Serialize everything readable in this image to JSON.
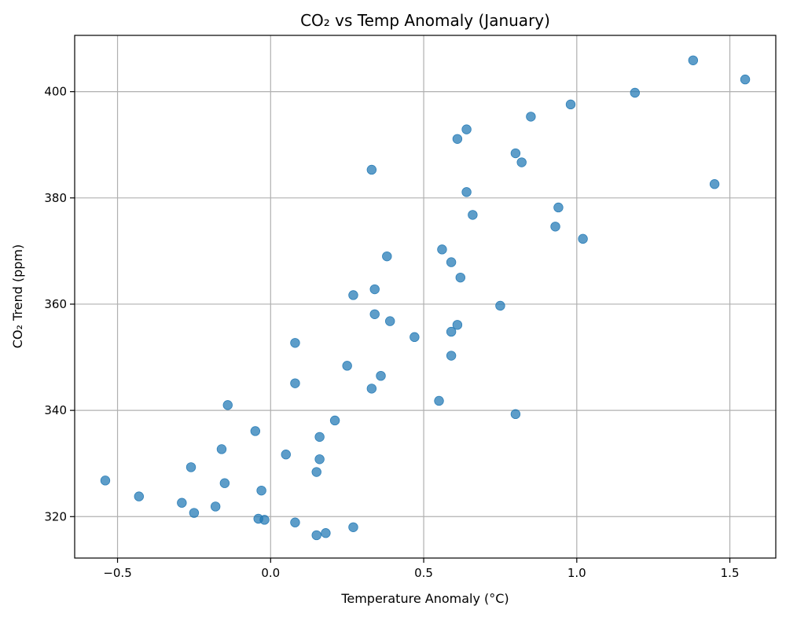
{
  "chart_data": {
    "type": "scatter",
    "title": "CO₂ vs Temp Anomaly (January)",
    "xlabel": "Temperature Anomaly (°C)",
    "ylabel": "CO₂ Trend (ppm)",
    "xlim": [
      -0.64,
      1.65
    ],
    "ylim": [
      312.2,
      410.6
    ],
    "xticks": [
      -0.5,
      0.0,
      0.5,
      1.0,
      1.5
    ],
    "xtick_labels": [
      "−0.5",
      "0.0",
      "0.5",
      "1.0",
      "1.5"
    ],
    "yticks": [
      320,
      340,
      360,
      380,
      400
    ],
    "ytick_labels": [
      "320",
      "340",
      "360",
      "380",
      "400"
    ],
    "grid": true,
    "marker_color": "#1f77b4",
    "series": [
      {
        "points": [
          [
            1.38,
            405.9
          ],
          [
            1.55,
            402.3
          ],
          [
            1.19,
            399.8
          ],
          [
            0.98,
            397.6
          ],
          [
            0.85,
            395.3
          ],
          [
            0.64,
            392.9
          ],
          [
            0.61,
            391.1
          ],
          [
            0.8,
            388.4
          ],
          [
            0.82,
            386.7
          ],
          [
            0.33,
            385.3
          ],
          [
            1.45,
            382.6
          ],
          [
            0.64,
            381.1
          ],
          [
            0.94,
            378.2
          ],
          [
            0.66,
            376.8
          ],
          [
            0.93,
            374.6
          ],
          [
            1.02,
            372.3
          ],
          [
            0.56,
            370.3
          ],
          [
            0.38,
            369.0
          ],
          [
            0.59,
            367.9
          ],
          [
            0.62,
            365.0
          ],
          [
            0.34,
            362.8
          ],
          [
            0.27,
            361.7
          ],
          [
            0.75,
            359.7
          ],
          [
            0.34,
            358.1
          ],
          [
            0.61,
            356.1
          ],
          [
            0.39,
            356.8
          ],
          [
            0.59,
            354.8
          ],
          [
            0.47,
            353.8
          ],
          [
            0.08,
            352.7
          ],
          [
            0.59,
            350.3
          ],
          [
            0.25,
            348.4
          ],
          [
            0.36,
            346.5
          ],
          [
            0.08,
            345.1
          ],
          [
            0.33,
            344.1
          ],
          [
            0.55,
            341.8
          ],
          [
            -0.14,
            341.0
          ],
          [
            0.8,
            339.3
          ],
          [
            0.21,
            338.1
          ],
          [
            -0.05,
            336.1
          ],
          [
            0.16,
            335.0
          ],
          [
            -0.16,
            332.7
          ],
          [
            0.05,
            331.7
          ],
          [
            0.16,
            330.8
          ],
          [
            -0.26,
            329.3
          ],
          [
            0.15,
            328.4
          ],
          [
            -0.54,
            326.8
          ],
          [
            -0.15,
            326.3
          ],
          [
            -0.03,
            324.9
          ],
          [
            -0.43,
            323.8
          ],
          [
            -0.29,
            322.6
          ],
          [
            -0.18,
            321.9
          ],
          [
            -0.25,
            320.7
          ],
          [
            -0.04,
            319.6
          ],
          [
            -0.02,
            319.4
          ],
          [
            0.08,
            318.9
          ],
          [
            0.27,
            318.0
          ],
          [
            0.18,
            316.9
          ],
          [
            0.15,
            316.5
          ]
        ]
      }
    ]
  }
}
